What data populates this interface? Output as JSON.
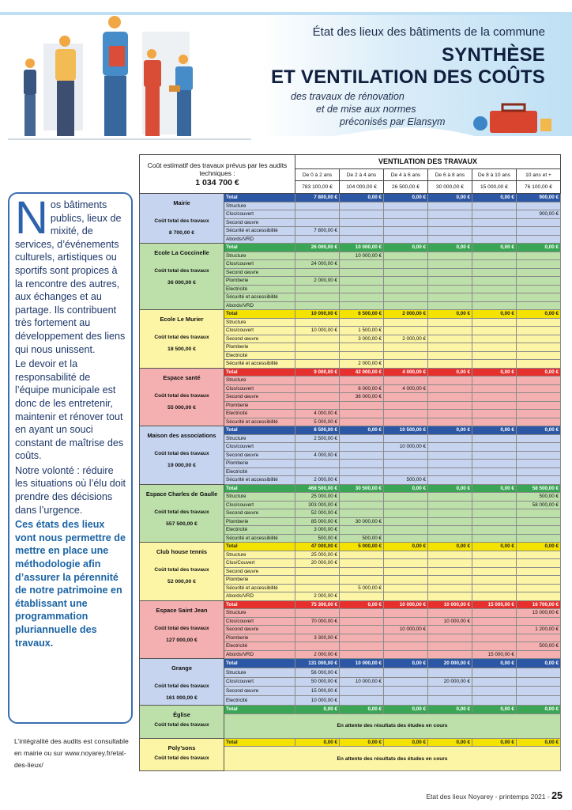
{
  "header": {
    "subtitle": "État des lieux des bâtiments de la commune",
    "title_lines": [
      "SYNTHÈSE",
      "ET VENTILATION DES COÛTS"
    ],
    "tagline_lines": [
      "des travaux de rénovation",
      "et de mise aux normes",
      "préconisés par Elansym"
    ]
  },
  "sidebar": {
    "drop_cap": "N",
    "intro": "os bâtiments publics, lieux de mixité, de services, d’événements culturels, artistiques ou sportifs sont propices à la rencontre des autres, aux échanges et au partage. Ils contribuent très fortement au développement des liens qui nous unissent.",
    "paragraphs": [
      "Le devoir et la responsabilité de l’équipe municipale est donc de les entretenir, maintenir et rénover tout en ayant un souci constant de maîtrise des coûts.",
      "Notre volonté : réduire les situations où l’élu doit prendre des décisions dans l’urgence."
    ],
    "highlight": "Ces états des lieux vont nous permettre de mettre en place une méthodologie afin d’assurer la pérennité de notre patrimoine en établissant une programmation pluriannuelle des travaux.",
    "note": "L’intégralité des audits est consultable en mairie ou sur www.noyarey.fr/etat-des-lieux/"
  },
  "table": {
    "cost_label": "Coût estimatif des travaux prévus par les audits techniques :",
    "cost_total": "1 034 700 €",
    "ventilation_title": "VENTILATION DES TRAVAUX",
    "periods": [
      {
        "label": "De 0 à 2 ans",
        "amount": "783 100,00 €"
      },
      {
        "label": "De 2 à 4 ans",
        "amount": "104 000,00 €"
      },
      {
        "label": "De 4 à 6 ans",
        "amount": "26 500,00 €"
      },
      {
        "label": "De 6 à 8 ans",
        "amount": "30 000,00 €"
      },
      {
        "label": "De 8 à 10 ans",
        "amount": "15 000,00 €"
      },
      {
        "label": "10 ans et +",
        "amount": "76 100,00 €"
      }
    ],
    "buildings": [
      {
        "name": "Mairie",
        "cost_label": "Coût total des travaux",
        "total": "8 700,00 €",
        "total_color": "#2c57a5",
        "body_color": "#c6d4ef",
        "total_text": "#ffffff",
        "rows": [
          {
            "label": "Total",
            "cells": [
              "7 800,00 €",
              "0,00 €",
              "0,00 €",
              "0,00 €",
              "0,00 €",
              "900,00 €"
            ]
          },
          {
            "label": "Structure",
            "cells": [
              null,
              null,
              null,
              null,
              null,
              null
            ]
          },
          {
            "label": "Clos/couvert",
            "cells": [
              null,
              null,
              null,
              null,
              null,
              "900,00 €"
            ]
          },
          {
            "label": "Second œuvre",
            "cells": [
              null,
              null,
              null,
              null,
              null,
              null
            ]
          },
          {
            "label": "Sécurité et accessibilité",
            "cells": [
              "7 800,00 €",
              null,
              null,
              null,
              null,
              null
            ]
          },
          {
            "label": "Abords/VRD",
            "cells": [
              null,
              null,
              null,
              null,
              null,
              null
            ]
          }
        ]
      },
      {
        "name": "Ecole La Coccinelle",
        "cost_label": "Coût total des travaux",
        "total": "36 000,00 €",
        "total_color": "#3aa655",
        "body_color": "#bde0ab",
        "total_text": "#ffffff",
        "rows": [
          {
            "label": "Total",
            "cells": [
              "26 000,00 €",
              "10 000,00 €",
              "0,00 €",
              "0,00 €",
              "0,00 €",
              "0,00 €"
            ]
          },
          {
            "label": "Structure",
            "cells": [
              null,
              "10 000,00 €",
              null,
              null,
              null,
              null
            ]
          },
          {
            "label": "Clos/couvert",
            "cells": [
              "24 000,00 €",
              null,
              null,
              null,
              null,
              null
            ]
          },
          {
            "label": "Second œuvre",
            "cells": [
              null,
              null,
              null,
              null,
              null,
              null
            ]
          },
          {
            "label": "Plomberie",
            "cells": [
              "2 000,00 €",
              null,
              null,
              null,
              null,
              null
            ]
          },
          {
            "label": "Electricité",
            "cells": [
              null,
              null,
              null,
              null,
              null,
              null
            ]
          },
          {
            "label": "Sécurité et accessibilité",
            "cells": [
              null,
              null,
              null,
              null,
              null,
              null
            ]
          },
          {
            "label": "Abords/VRD",
            "cells": [
              null,
              null,
              null,
              null,
              null,
              null
            ]
          }
        ]
      },
      {
        "name": "Ecole Le Murier",
        "cost_label": "Coût total des travaux",
        "total": "18 500,00 €",
        "total_color": "#f4e300",
        "body_color": "#fcf5a6",
        "total_text": "#222222",
        "rows": [
          {
            "label": "Total",
            "cells": [
              "10 000,00 €",
              "6 500,00 €",
              "2 000,00 €",
              "0,00 €",
              "0,00 €",
              "0,00 €"
            ]
          },
          {
            "label": "Structure",
            "cells": [
              null,
              null,
              null,
              null,
              null,
              null
            ]
          },
          {
            "label": "Clos/couvert",
            "cells": [
              "10 000,00 €",
              "1 500,00 €",
              null,
              null,
              null,
              null
            ]
          },
          {
            "label": "Second œuvre",
            "cells": [
              null,
              "3 000,00 €",
              "2 000,00 €",
              null,
              null,
              null
            ]
          },
          {
            "label": "Plomberie",
            "cells": [
              null,
              null,
              null,
              null,
              null,
              null
            ]
          },
          {
            "label": "Electricité",
            "cells": [
              null,
              null,
              null,
              null,
              null,
              null
            ]
          },
          {
            "label": "Sécurité et accessibilité",
            "cells": [
              null,
              "2 000,00 €",
              null,
              null,
              null,
              null
            ]
          }
        ]
      },
      {
        "name": "Espace santé",
        "cost_label": "Coût total des travaux",
        "total": "55 000,00 €",
        "total_color": "#e5302e",
        "body_color": "#f4b0b0",
        "total_text": "#ffffff",
        "rows": [
          {
            "label": "Total",
            "cells": [
              "9 000,00 €",
              "42 000,00 €",
              "4 000,00 €",
              "0,00 €",
              "0,00 €",
              "0,00 €"
            ]
          },
          {
            "label": "Structure",
            "cells": [
              null,
              null,
              null,
              null,
              null,
              null
            ]
          },
          {
            "label": "Clos/couvert",
            "cells": [
              null,
              "6 000,00 €",
              "4 000,00 €",
              null,
              null,
              null
            ]
          },
          {
            "label": "Second œuvre",
            "cells": [
              null,
              "36 000,00 €",
              null,
              null,
              null,
              null
            ]
          },
          {
            "label": "Plomberie",
            "cells": [
              null,
              null,
              null,
              null,
              null,
              null
            ]
          },
          {
            "label": "Electricité",
            "cells": [
              "4 000,00 €",
              null,
              null,
              null,
              null,
              null
            ]
          },
          {
            "label": "Sécurité et accessibilité",
            "cells": [
              "5 000,00 €",
              null,
              null,
              null,
              null,
              null
            ]
          }
        ]
      },
      {
        "name": "Maison des associations",
        "cost_label": "Coût total des travaux",
        "total": "19 000,00 €",
        "total_color": "#2c57a5",
        "body_color": "#c6d4ef",
        "total_text": "#ffffff",
        "rows": [
          {
            "label": "Total",
            "cells": [
              "8 500,00 €",
              "0,00 €",
              "10 500,00 €",
              "0,00 €",
              "0,00 €",
              "0,00 €"
            ]
          },
          {
            "label": "Structure",
            "cells": [
              "2 500,00 €",
              null,
              null,
              null,
              null,
              null
            ]
          },
          {
            "label": "Clos/couvert",
            "cells": [
              null,
              null,
              "10 000,00 €",
              null,
              null,
              null
            ]
          },
          {
            "label": "Second œuvre",
            "cells": [
              "4 000,00 €",
              null,
              null,
              null,
              null,
              null
            ]
          },
          {
            "label": "Plomberie",
            "cells": [
              null,
              null,
              null,
              null,
              null,
              null
            ]
          },
          {
            "label": "Electricité",
            "cells": [
              null,
              null,
              null,
              null,
              null,
              null
            ]
          },
          {
            "label": "Sécurité et accessibilité",
            "cells": [
              "2 000,00 €",
              null,
              "500,00 €",
              null,
              null,
              null
            ]
          }
        ]
      },
      {
        "name": "Espace Charles de Gaulle",
        "cost_label": "Coût total des travaux",
        "total": "557 500,00 €",
        "total_color": "#3aa655",
        "body_color": "#bde0ab",
        "total_text": "#ffffff",
        "rows": [
          {
            "label": "Total",
            "cells": [
              "468 500,00 €",
              "30 500,00 €",
              "0,00 €",
              "0,00 €",
              "0,00 €",
              "58 500,00 €"
            ]
          },
          {
            "label": "Structure",
            "cells": [
              "25 000,00 €",
              null,
              null,
              null,
              null,
              "500,00 €"
            ]
          },
          {
            "label": "Clos/couvert",
            "cells": [
              "303 000,00 €",
              null,
              null,
              null,
              null,
              "58 000,00 €"
            ]
          },
          {
            "label": "Second œuvre",
            "cells": [
              "52 000,00 €",
              null,
              null,
              null,
              null,
              null
            ]
          },
          {
            "label": "Plomberie",
            "cells": [
              "85 000,00 €",
              "30 000,00 €",
              null,
              null,
              null,
              null
            ]
          },
          {
            "label": "Electricité",
            "cells": [
              "3 000,00 €",
              null,
              null,
              null,
              null,
              null
            ]
          },
          {
            "label": "Sécurité et accessibilité",
            "cells": [
              "500,00 €",
              "500,00 €",
              null,
              null,
              null,
              null
            ]
          }
        ]
      },
      {
        "name": "Club house tennis",
        "cost_label": "Coût total des travaux",
        "total": "52 000,00 €",
        "total_color": "#f4e300",
        "body_color": "#fcf5a6",
        "total_text": "#222222",
        "rows": [
          {
            "label": "Total",
            "cells": [
              "47 000,00 €",
              "5 000,00 €",
              "0,00 €",
              "0,00 €",
              "0,00 €",
              "0,00 €"
            ]
          },
          {
            "label": "Structure",
            "cells": [
              "25 000,00 €",
              null,
              null,
              null,
              null,
              null
            ]
          },
          {
            "label": "Clos/Couvert",
            "cells": [
              "20 000,00 €",
              null,
              null,
              null,
              null,
              null
            ]
          },
          {
            "label": "Second œuvre",
            "cells": [
              null,
              null,
              null,
              null,
              null,
              null
            ]
          },
          {
            "label": "Plomberie",
            "cells": [
              null,
              null,
              null,
              null,
              null,
              null
            ]
          },
          {
            "label": "Sécurité et accessibilité",
            "cells": [
              null,
              "5 000,00 €",
              null,
              null,
              null,
              null
            ]
          },
          {
            "label": "Abords/VRD",
            "cells": [
              "2 000,00 €",
              null,
              null,
              null,
              null,
              null
            ]
          }
        ]
      },
      {
        "name": "Espace Saint Jean",
        "cost_label": "Coût total des travaux",
        "total": "127 000,00 €",
        "total_color": "#e5302e",
        "body_color": "#f4b0b0",
        "total_text": "#ffffff",
        "rows": [
          {
            "label": "Total",
            "cells": [
              "75 300,00 €",
              "0,00 €",
              "10 000,00 €",
              "10 000,00 €",
              "15 000,00 €",
              "16 700,00 €"
            ]
          },
          {
            "label": "Structure",
            "cells": [
              null,
              null,
              null,
              null,
              null,
              "15 000,00 €"
            ]
          },
          {
            "label": "Clos/couvert",
            "cells": [
              "70 000,00 €",
              null,
              null,
              "10 000,00 €",
              null,
              null
            ]
          },
          {
            "label": "Second œuvre",
            "cells": [
              null,
              null,
              "10 000,00 €",
              null,
              null,
              "1 200,00 €"
            ]
          },
          {
            "label": "Plomberie",
            "cells": [
              "3 300,00 €",
              null,
              null,
              null,
              null,
              null
            ]
          },
          {
            "label": "Electricité",
            "cells": [
              null,
              null,
              null,
              null,
              null,
              "500,00 €"
            ]
          },
          {
            "label": "Abords/VRD",
            "cells": [
              "2 000,00 €",
              null,
              null,
              null,
              "15 000,00 €",
              null
            ]
          }
        ]
      },
      {
        "name": "Grange",
        "cost_label": "Coût total des travaux",
        "total": "161 000,00 €",
        "total_color": "#2c57a5",
        "body_color": "#c6d4ef",
        "total_text": "#ffffff",
        "rows": [
          {
            "label": "Total",
            "cells": [
              "131 000,00 €",
              "10 000,00 €",
              "0,00 €",
              "20 000,00 €",
              "0,00 €",
              "0,00 €"
            ]
          },
          {
            "label": "Structure",
            "cells": [
              "56 000,00 €",
              null,
              null,
              null,
              null,
              null
            ]
          },
          {
            "label": "Clos/couvert",
            "cells": [
              "50 000,00 €",
              "10 000,00 €",
              null,
              "20 000,00 €",
              null,
              null
            ]
          },
          {
            "label": "Second œuvre",
            "cells": [
              "15 000,00 €",
              null,
              null,
              null,
              null,
              null
            ]
          },
          {
            "label": "Electricité",
            "cells": [
              "10 000,00 €",
              null,
              null,
              null,
              null,
              null
            ]
          }
        ]
      },
      {
        "name": "Église",
        "cost_label": "Coût total des travaux",
        "total_color": "#3aa655",
        "body_color": "#bde0ab",
        "total_text": "#ffffff",
        "rows": [
          {
            "label": "Total",
            "cells": [
              "0,00 €",
              "0,00 €",
              "0,00 €",
              "0,00 €",
              "0,00 €",
              "0,00 €"
            ]
          }
        ],
        "note": "En attente des résultats des études en cours"
      },
      {
        "name": "Poly’sons",
        "cost_label": "Coût total des travaux",
        "total_color": "#f4e300",
        "body_color": "#fcf5a6",
        "total_text": "#222222",
        "rows": [
          {
            "label": "Total",
            "cells": [
              "0,00 €",
              "0,00 €",
              "0,00 €",
              "0,00 €",
              "0,00 €",
              "0,00 €"
            ]
          }
        ],
        "note": "En attente des résultats des études en cours"
      }
    ]
  },
  "footer": {
    "text": "Etat des lieux Noyarey - printemps 2021 -",
    "page": "25"
  }
}
